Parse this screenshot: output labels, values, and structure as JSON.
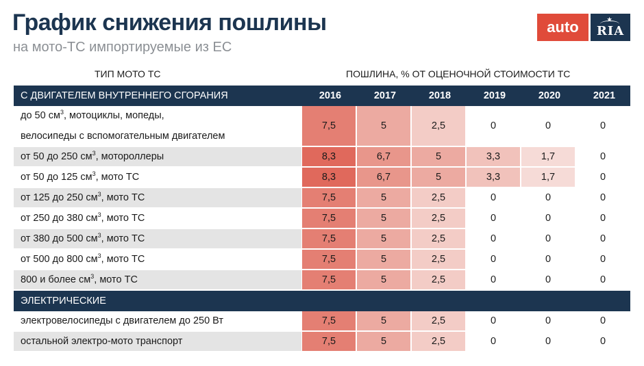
{
  "header": {
    "title": "График снижения пошлины",
    "subtitle": "на мото-ТС импортируемые из ЕС",
    "logo_left": "auto",
    "logo_right": "RIA"
  },
  "columns": {
    "type_header": "ТИП МОТО ТС",
    "duty_header": "ПОШЛИНА, % ОТ ОЦЕНОЧНОЙ СТОИМОСТИ ТС",
    "years": [
      "2016",
      "2017",
      "2018",
      "2019",
      "2020",
      "2021"
    ]
  },
  "sections": {
    "ice": "С ДВИГАТЕЛЕМ ВНУТРЕННЕГО СГОРАНИЯ",
    "electric": "ЭЛЕКТРИЧЕСКИЕ"
  },
  "rows": [
    {
      "line1": "до 50 см",
      "sup": "3",
      "line1_rest": ", мотоциклы, мопеды,",
      "line2": "велосипеды с вспомогательным двигателем",
      "values": [
        "7,5",
        "5",
        "2,5",
        "0",
        "0",
        "0"
      ]
    },
    {
      "pre": "от 50 до 250 см",
      "sup": "3",
      "post": ", мотороллеры",
      "values": [
        "8,3",
        "6,7",
        "5",
        "3,3",
        "1,7",
        "0"
      ]
    },
    {
      "pre": "от 50 до 125 см",
      "sup": "3",
      "post": ", мото ТС",
      "values": [
        "8,3",
        "6,7",
        "5",
        "3,3",
        "1,7",
        "0"
      ]
    },
    {
      "pre": "от 125 до 250 см",
      "sup": "3",
      "post": ", мото ТС",
      "values": [
        "7,5",
        "5",
        "2,5",
        "0",
        "0",
        "0"
      ]
    },
    {
      "pre": "от 250 до 380 см",
      "sup": "3",
      "post": ", мото ТС",
      "values": [
        "7,5",
        "5",
        "2,5",
        "0",
        "0",
        "0"
      ]
    },
    {
      "pre": "от 380 до 500 см",
      "sup": "3",
      "post": ", мото ТС",
      "values": [
        "7,5",
        "5",
        "2,5",
        "0",
        "0",
        "0"
      ]
    },
    {
      "pre": "от 500 до 800 см",
      "sup": "3",
      "post": ", мото ТС",
      "values": [
        "7,5",
        "5",
        "2,5",
        "0",
        "0",
        "0"
      ]
    },
    {
      "pre": "800 и более см",
      "sup": "3",
      "post": ", мото ТС",
      "values": [
        "7,5",
        "5",
        "2,5",
        "0",
        "0",
        "0"
      ]
    },
    {
      "pre": "электровелосипеды с двигателем до 250 Вт",
      "sup": "",
      "post": "",
      "values": [
        "7,5",
        "5",
        "2,5",
        "0",
        "0",
        "0"
      ]
    },
    {
      "pre": "остальной электро-мото транспорт",
      "sup": "",
      "post": "",
      "values": [
        "7,5",
        "5",
        "2,5",
        "0",
        "0",
        "0"
      ]
    }
  ],
  "colors": {
    "navy": "#1c3550",
    "brand_red": "#e04b3a",
    "heat_8_3": "#e0695c",
    "heat_7_5": "#e47f73",
    "heat_6_7": "#e8968b",
    "heat_5": "#ecaaa1",
    "heat_3_3": "#f1c2bb",
    "heat_2_5": "#f3ccc6",
    "heat_1_7": "#f6dbd7"
  }
}
